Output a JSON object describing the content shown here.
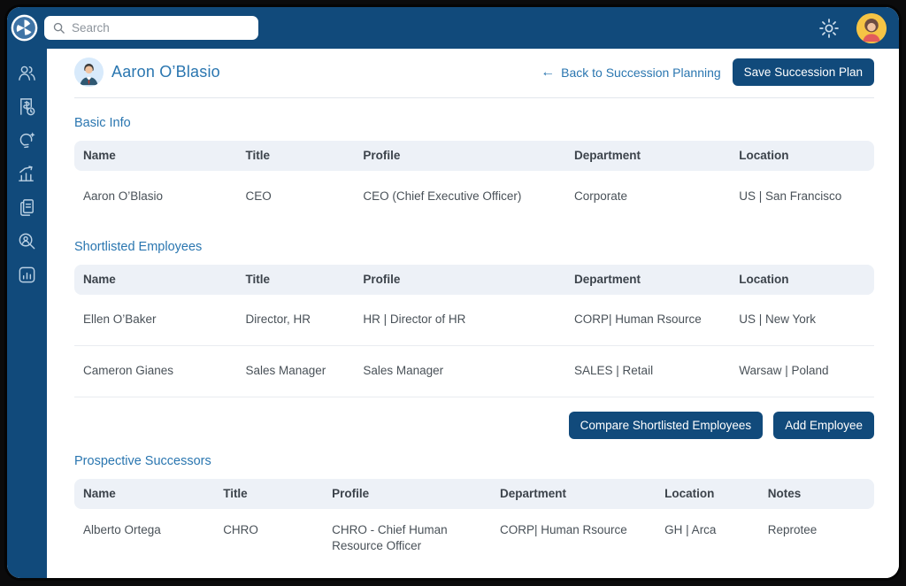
{
  "topbar": {
    "search_placeholder": "Search",
    "icons": [
      "app-logo",
      "search",
      "settings-gear",
      "user-avatar"
    ]
  },
  "sidebar": {
    "icons": [
      "people",
      "payroll-invoice-clock",
      "idea-lightbulb",
      "performance-chart",
      "documents",
      "people-search",
      "analytics-report"
    ]
  },
  "page": {
    "title": "Aaron O’Blasio",
    "back_arrow": "←",
    "back_link": "Back to Succession Planning",
    "save_button": "Save Succession Plan"
  },
  "sections": {
    "basic_info": {
      "title": "Basic Info",
      "columns": [
        "Name",
        "Title",
        "Profile",
        "Department",
        "Location"
      ],
      "rows": [
        [
          "Aaron O’Blasio",
          "CEO",
          "CEO (Chief Executive Officer)",
          "Corporate",
          "US | San Francisco"
        ]
      ]
    },
    "shortlisted": {
      "title": "Shortlisted Employees",
      "columns": [
        "Name",
        "Title",
        "Profile",
        "Department",
        "Location"
      ],
      "rows": [
        [
          "Ellen O’Baker",
          "Director, HR",
          "HR | Director of HR",
          "CORP| Human Rsource",
          "US | New York"
        ],
        [
          "Cameron Gianes",
          "Sales Manager",
          "Sales Manager",
          "SALES | Retail",
          "Warsaw | Poland"
        ]
      ],
      "compare_button": "Compare Shortlisted Employees",
      "add_button": "Add Employee"
    },
    "prospective": {
      "title": "Prospective Successors",
      "columns": [
        "Name",
        "Title",
        "Profile",
        "Department",
        "Location",
        "Notes"
      ],
      "rows": [
        [
          "Alberto Ortega",
          "CHRO",
          "CHRO - Chief Human Resource Officer",
          "CORP| Human Rsource",
          "GH | Arca",
          "Reprotee"
        ]
      ]
    }
  },
  "colors": {
    "brand_dark_blue": "#114a7b",
    "link_blue": "#2a76b0",
    "table_header_bg": "#edf1f7",
    "avatar_top_bg": "#f5c445",
    "avatar_page_bg": "#d8eafb"
  }
}
